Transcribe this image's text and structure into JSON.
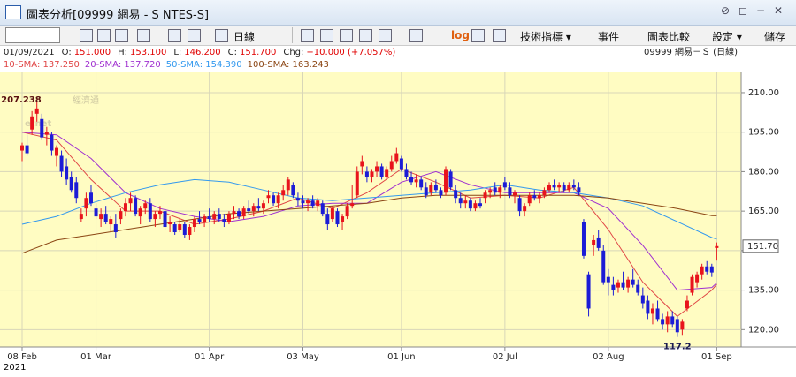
{
  "toolbar": {
    "title": "圖表分析[09999 網易 - S NTES-S]",
    "items": [
      "日線",
      "log",
      "技術指標 ▾",
      "事件",
      "圖表比較",
      "設定 ▾",
      "儲存"
    ]
  },
  "watermark": {
    "cn": "經濟通",
    "en": "etnet"
  },
  "info": {
    "date": "01/09/2021",
    "fields": [
      {
        "label": "O:",
        "value": "151.000"
      },
      {
        "label": "H:",
        "value": "153.100"
      },
      {
        "label": "L:",
        "value": "146.200"
      },
      {
        "label": "C:",
        "value": "151.700"
      },
      {
        "label": "Chg:",
        "value": "+10.000 (+7.057%)"
      }
    ],
    "symbol": "09999 網易－Ｓ (日線)"
  },
  "chart_data": {
    "type": "candlestick",
    "year_label": "2021",
    "up_color": "#e8141c",
    "down_color": "#1c1cd6",
    "grid": true,
    "categories": [
      "08 Feb",
      null,
      null,
      null,
      null,
      null,
      null,
      null,
      null,
      null,
      null,
      null,
      null,
      null,
      null,
      "01 Mar",
      null,
      null,
      null,
      null,
      null,
      null,
      null,
      null,
      null,
      null,
      null,
      null,
      null,
      null,
      null,
      null,
      null,
      null,
      null,
      null,
      null,
      null,
      "01 Apr",
      null,
      null,
      null,
      null,
      null,
      null,
      null,
      null,
      null,
      null,
      null,
      null,
      null,
      null,
      null,
      null,
      null,
      null,
      "03 May",
      null,
      null,
      null,
      null,
      null,
      null,
      null,
      null,
      null,
      null,
      null,
      null,
      null,
      null,
      null,
      null,
      null,
      null,
      null,
      "01 Jun",
      null,
      null,
      null,
      null,
      null,
      null,
      null,
      null,
      null,
      null,
      null,
      null,
      null,
      null,
      null,
      null,
      null,
      null,
      null,
      null,
      "02 Jul",
      null,
      null,
      null,
      null,
      null,
      null,
      null,
      null,
      null,
      null,
      null,
      null,
      null,
      null,
      null,
      null,
      null,
      null,
      null,
      null,
      "02 Aug",
      null,
      null,
      null,
      null,
      null,
      null,
      null,
      null,
      null,
      null,
      null,
      null,
      null,
      null,
      null,
      null,
      null,
      null,
      null,
      null,
      null,
      "01 Sep"
    ],
    "open": [
      188,
      190,
      196,
      202,
      200,
      194,
      194,
      186,
      186,
      182,
      178,
      176,
      162,
      166,
      172,
      166,
      162,
      164,
      160,
      160,
      162,
      165,
      168,
      170,
      163,
      166,
      168,
      162,
      164,
      165,
      160,
      160,
      158,
      160,
      156,
      159,
      162,
      161,
      163,
      162,
      164,
      162,
      161,
      164,
      165,
      163,
      166,
      165,
      167,
      166,
      170,
      171,
      168,
      171,
      173,
      175,
      170,
      169,
      168,
      169,
      167,
      168,
      164,
      162,
      165,
      161,
      163,
      167,
      171,
      182,
      180,
      178,
      180,
      182,
      178,
      181,
      184,
      185,
      181,
      178,
      176,
      177,
      174,
      172,
      175,
      173,
      172,
      180,
      173,
      170,
      168,
      169,
      166,
      168,
      170,
      172,
      174,
      172,
      176,
      174,
      171,
      170,
      165,
      168,
      171,
      170,
      171,
      173,
      175,
      174,
      175,
      173,
      175,
      174,
      161,
      141,
      152,
      155,
      150,
      140,
      137,
      136,
      138,
      136,
      139,
      137,
      133,
      131,
      126,
      128,
      124,
      122,
      125,
      124,
      120,
      128,
      134,
      138,
      141,
      144,
      144,
      151
    ],
    "high": [
      191,
      194,
      203,
      207.238,
      202,
      197,
      195,
      190,
      188,
      185,
      180,
      178,
      166,
      172,
      175,
      168,
      166,
      167,
      163,
      164,
      166,
      170,
      172,
      171,
      167,
      169,
      170,
      165,
      167,
      166,
      163,
      161,
      162,
      161,
      160,
      163,
      165,
      164,
      166,
      165,
      166,
      164,
      165,
      167,
      166,
      167,
      169,
      168,
      170,
      169,
      173,
      172,
      172,
      175,
      178,
      176,
      172,
      171,
      170,
      171,
      170,
      169,
      166,
      167,
      166,
      164,
      168,
      175,
      182,
      186,
      182,
      181,
      184,
      183,
      182,
      186,
      189,
      186,
      183,
      180,
      179,
      178,
      176,
      176,
      177,
      174,
      182,
      181,
      175,
      172,
      171,
      170,
      169,
      170,
      173,
      174,
      176,
      175,
      178,
      176,
      173,
      171,
      168,
      172,
      173,
      172,
      174,
      176,
      177,
      176,
      176,
      176,
      177,
      176,
      162,
      142,
      156,
      158,
      152,
      143,
      140,
      139,
      142,
      140,
      143,
      139,
      136,
      133,
      130,
      131,
      126,
      127,
      127,
      125,
      124,
      133,
      141,
      142,
      145,
      146,
      145,
      153.1
    ],
    "low": [
      184,
      186,
      194,
      199,
      192,
      190,
      186,
      182,
      178,
      175,
      172,
      168,
      161,
      163,
      167,
      162,
      159,
      160,
      157,
      155,
      160,
      163,
      165,
      163,
      160,
      164,
      161,
      159,
      162,
      158,
      157,
      156,
      157,
      155,
      154,
      157,
      160,
      159,
      161,
      160,
      161,
      159,
      160,
      162,
      162,
      162,
      164,
      163,
      165,
      164,
      168,
      167,
      166,
      169,
      171,
      170,
      167,
      166,
      165,
      166,
      165,
      163,
      158,
      161,
      159,
      158,
      162,
      166,
      170,
      179,
      176,
      176,
      178,
      177,
      177,
      180,
      183,
      180,
      177,
      175,
      174,
      173,
      170,
      171,
      172,
      170,
      171,
      173,
      168,
      166,
      166,
      165,
      165,
      166,
      168,
      170,
      171,
      170,
      173,
      170,
      168,
      163,
      163,
      167,
      169,
      168,
      170,
      172,
      173,
      172,
      172,
      172,
      173,
      171,
      147,
      125,
      148,
      150,
      137,
      133,
      133,
      134,
      135,
      134,
      136,
      133,
      128,
      124,
      122,
      123,
      120,
      119,
      121,
      117.2,
      118,
      127,
      133,
      136,
      139,
      141,
      140,
      146.2
    ],
    "close": [
      190,
      187,
      201,
      204,
      193,
      195,
      188,
      189,
      180,
      177,
      173,
      170,
      164,
      170,
      168,
      163,
      164,
      161,
      162,
      157,
      165,
      168,
      170,
      164,
      166,
      168,
      162,
      164,
      165,
      159,
      161,
      157,
      160,
      156,
      159,
      162,
      161,
      163,
      162,
      164,
      162,
      161,
      164,
      165,
      163,
      166,
      165,
      167,
      166,
      168,
      171,
      168,
      171,
      173,
      177,
      171,
      169,
      168,
      169,
      167,
      169,
      164,
      160,
      166,
      160,
      163,
      167,
      168,
      180,
      184,
      178,
      180,
      182,
      178,
      181,
      184,
      187,
      181,
      178,
      176,
      177,
      174,
      171,
      175,
      173,
      171,
      181,
      174,
      170,
      168,
      169,
      166,
      168,
      167,
      172,
      173,
      172,
      174,
      174,
      171,
      172,
      165,
      167,
      171,
      170,
      171,
      173,
      175,
      174,
      175,
      173,
      175,
      174,
      172,
      148,
      128,
      154,
      151,
      138,
      138,
      135,
      138,
      136,
      139,
      137,
      134,
      130,
      126,
      128,
      124,
      122,
      125,
      122,
      119,
      123,
      131,
      140,
      141,
      144,
      142,
      141.7,
      151.7
    ],
    "last_price_label": "151.70",
    "sma": [
      {
        "name": "10-SMA: 137.250",
        "color": "#e04646",
        "x": [
          0,
          7,
          14,
          21,
          28,
          35,
          42,
          49,
          56,
          63,
          70,
          77,
          84,
          91,
          98,
          105,
          112,
          119,
          126,
          133,
          140,
          141
        ],
        "values": [
          195,
          192,
          177,
          165,
          165,
          160,
          162,
          165,
          170,
          166,
          172,
          181,
          176,
          170,
          171,
          170,
          174,
          158,
          138,
          125,
          135,
          137.25
        ]
      },
      {
        "name": "20-SMA: 137.720",
        "color": "#a030d0",
        "x": [
          0,
          7,
          14,
          21,
          28,
          35,
          42,
          49,
          56,
          63,
          70,
          77,
          84,
          91,
          98,
          105,
          112,
          119,
          126,
          133,
          140,
          141
        ],
        "values": [
          195,
          194,
          185,
          172,
          166,
          163,
          161,
          163,
          167,
          168,
          168,
          176,
          180,
          175,
          172,
          172,
          172,
          166,
          152,
          135,
          136,
          137.72
        ]
      },
      {
        "name": "50-SMA: 154.390",
        "color": "#3399ee",
        "x": [
          0,
          7,
          14,
          21,
          28,
          35,
          42,
          49,
          56,
          63,
          70,
          77,
          84,
          91,
          98,
          105,
          112,
          119,
          126,
          133,
          140,
          141
        ],
        "values": [
          160,
          163,
          168,
          172,
          175,
          177,
          176,
          173,
          170,
          169,
          170,
          171,
          172,
          173,
          175,
          173,
          172,
          170,
          167,
          161,
          155,
          154.39
        ]
      },
      {
        "name": "100-SMA: 163.243",
        "color": "#8b4513",
        "x": [
          0,
          7,
          14,
          21,
          28,
          35,
          42,
          49,
          56,
          63,
          70,
          77,
          84,
          91,
          98,
          105,
          112,
          119,
          126,
          133,
          140,
          141
        ],
        "values": [
          149,
          154,
          156,
          158,
          160,
          162,
          164,
          165,
          166,
          167,
          168,
          170,
          171,
          171,
          171,
          171,
          171,
          170,
          168,
          166,
          163.3,
          163.243
        ]
      }
    ],
    "ylim": [
      113.4,
      217.7
    ],
    "yticks": [
      {
        "value": 120,
        "label": "120.00"
      },
      {
        "value": 135,
        "label": "135.00"
      },
      {
        "value": 150,
        "label": "150.00"
      },
      {
        "value": 165,
        "label": "165.00"
      },
      {
        "value": 180,
        "label": "180.00"
      },
      {
        "value": 195,
        "label": "195.00"
      },
      {
        "value": 210,
        "label": "210.00"
      }
    ]
  }
}
